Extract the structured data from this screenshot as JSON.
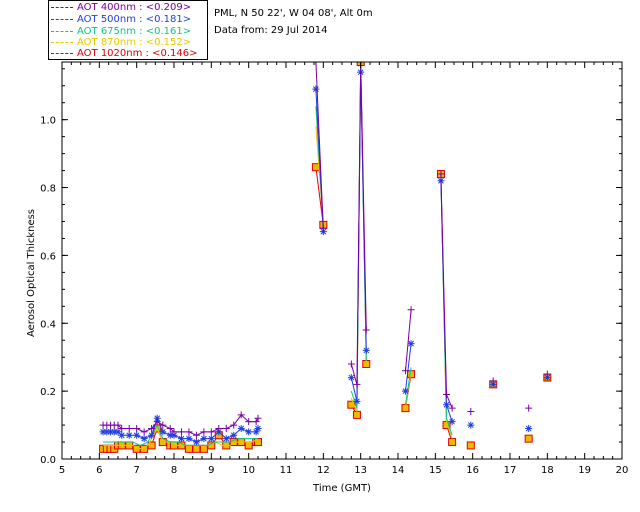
{
  "info": {
    "site": "PML, N 50 22', W 04 08', Alt 0m",
    "date": "Data from: 29 Jul 2014"
  },
  "chart_data": {
    "type": "line",
    "xlabel": "Time (GMT)",
    "ylabel": "Aerosol Optical Thickness",
    "xlim": [
      5,
      20
    ],
    "ylim": [
      0,
      1.17
    ],
    "xticks": [
      "5",
      "6",
      "7",
      "8",
      "9",
      "10",
      "11",
      "12",
      "13",
      "14",
      "15",
      "16",
      "17",
      "18",
      "19",
      "20"
    ],
    "yticks": [
      "0.0",
      "0.2",
      "0.4",
      "0.6",
      "0.8",
      "1.0"
    ],
    "legend_position": "top-left, outside plot",
    "grid": false,
    "series": [
      {
        "name": "AOT  400nm : <0.209>",
        "color": "#7a00a8",
        "marker": "plus",
        "segments": [
          [
            [
              6.1,
              0.1
            ],
            [
              6.2,
              0.1
            ],
            [
              6.3,
              0.1
            ],
            [
              6.4,
              0.1
            ],
            [
              6.5,
              0.1
            ],
            [
              6.6,
              0.09
            ],
            [
              6.8,
              0.09
            ],
            [
              7.0,
              0.09
            ],
            [
              7.2,
              0.08
            ],
            [
              7.4,
              0.09
            ],
            [
              7.55,
              0.11
            ],
            [
              7.7,
              0.1
            ],
            [
              7.9,
              0.09
            ],
            [
              8.0,
              0.08
            ],
            [
              8.2,
              0.08
            ],
            [
              8.4,
              0.08
            ],
            [
              8.6,
              0.07
            ],
            [
              8.8,
              0.08
            ],
            [
              9.0,
              0.08
            ],
            [
              9.2,
              0.09
            ],
            [
              9.4,
              0.09
            ],
            [
              9.6,
              0.1
            ],
            [
              9.8,
              0.13
            ],
            [
              10.0,
              0.11
            ],
            [
              10.2,
              0.11
            ],
            [
              10.25,
              0.12
            ]
          ],
          [
            [
              11.8,
              1.17
            ],
            [
              12.0,
              0.68
            ]
          ],
          [
            [
              12.75,
              0.28
            ],
            [
              12.9,
              0.22
            ],
            [
              13.0,
              1.17
            ],
            [
              13.15,
              0.38
            ]
          ],
          [
            [
              14.2,
              0.26
            ],
            [
              14.35,
              0.44
            ]
          ],
          [
            [
              15.15,
              0.84
            ],
            [
              15.3,
              0.19
            ],
            [
              15.45,
              0.15
            ]
          ],
          [
            [
              15.95,
              0.14
            ]
          ],
          [
            [
              16.55,
              0.23
            ]
          ],
          [
            [
              17.5,
              0.15
            ]
          ],
          [
            [
              18.0,
              0.25
            ]
          ]
        ]
      },
      {
        "name": "AOT  500nm : <0.181>",
        "color": "#1f3fe0",
        "marker": "star",
        "segments": [
          [
            [
              6.1,
              0.08
            ],
            [
              6.2,
              0.08
            ],
            [
              6.3,
              0.08
            ],
            [
              6.4,
              0.08
            ],
            [
              6.5,
              0.08
            ],
            [
              6.6,
              0.07
            ],
            [
              6.8,
              0.07
            ],
            [
              7.0,
              0.07
            ],
            [
              7.2,
              0.06
            ],
            [
              7.4,
              0.07
            ],
            [
              7.55,
              0.12
            ],
            [
              7.7,
              0.08
            ],
            [
              7.9,
              0.07
            ],
            [
              8.0,
              0.07
            ],
            [
              8.2,
              0.06
            ],
            [
              8.4,
              0.06
            ],
            [
              8.6,
              0.05
            ],
            [
              8.8,
              0.06
            ],
            [
              9.0,
              0.06
            ],
            [
              9.2,
              0.08
            ],
            [
              9.4,
              0.06
            ],
            [
              9.6,
              0.07
            ],
            [
              9.8,
              0.09
            ],
            [
              10.0,
              0.08
            ],
            [
              10.2,
              0.08
            ],
            [
              10.25,
              0.09
            ]
          ],
          [
            [
              11.8,
              1.09
            ],
            [
              12.0,
              0.67
            ]
          ],
          [
            [
              12.75,
              0.24
            ],
            [
              12.9,
              0.17
            ],
            [
              13.0,
              1.14
            ],
            [
              13.15,
              0.32
            ]
          ],
          [
            [
              14.2,
              0.2
            ],
            [
              14.35,
              0.34
            ]
          ],
          [
            [
              15.15,
              0.82
            ],
            [
              15.3,
              0.16
            ],
            [
              15.45,
              0.11
            ]
          ],
          [
            [
              15.95,
              0.1
            ]
          ],
          [
            [
              16.55,
              0.22
            ]
          ],
          [
            [
              17.5,
              0.09
            ]
          ],
          [
            [
              18.0,
              0.24
            ]
          ]
        ]
      },
      {
        "name": "AOT  675nm : <0.161>",
        "color": "#00cc88",
        "marker": "none",
        "segments": [
          [
            [
              6.1,
              0.05
            ],
            [
              6.3,
              0.05
            ],
            [
              6.5,
              0.05
            ],
            [
              6.7,
              0.05
            ],
            [
              6.9,
              0.05
            ],
            [
              7.1,
              0.04
            ],
            [
              7.3,
              0.05
            ],
            [
              7.55,
              0.1
            ],
            [
              7.7,
              0.06
            ],
            [
              7.9,
              0.05
            ],
            [
              8.1,
              0.05
            ],
            [
              8.3,
              0.04
            ],
            [
              8.5,
              0.04
            ],
            [
              8.7,
              0.04
            ],
            [
              8.9,
              0.04
            ],
            [
              9.1,
              0.05
            ],
            [
              9.3,
              0.05
            ],
            [
              9.5,
              0.05
            ],
            [
              9.7,
              0.06
            ],
            [
              9.9,
              0.06
            ],
            [
              10.1,
              0.06
            ],
            [
              10.25,
              0.06
            ]
          ],
          [
            [
              11.8,
              1.04
            ],
            [
              12.0,
              0.69
            ]
          ],
          [
            [
              12.75,
              0.2
            ],
            [
              12.9,
              0.15
            ],
            [
              13.0,
              1.16
            ],
            [
              13.15,
              0.29
            ]
          ],
          [
            [
              14.2,
              0.16
            ],
            [
              14.35,
              0.27
            ]
          ],
          [
            [
              15.15,
              0.83
            ],
            [
              15.3,
              0.12
            ],
            [
              15.45,
              0.07
            ]
          ],
          [
            [
              15.95,
              0.06
            ]
          ],
          [
            [
              16.55,
              0.22
            ]
          ],
          [
            [
              17.5,
              0.07
            ]
          ],
          [
            [
              18.0,
              0.24
            ]
          ]
        ]
      },
      {
        "name": "AOT  870nm : <0.152>",
        "color": "#e6c800",
        "marker": "none",
        "segments": [
          [
            [
              6.1,
              0.04
            ],
            [
              6.3,
              0.04
            ],
            [
              6.5,
              0.04
            ],
            [
              6.7,
              0.04
            ],
            [
              6.9,
              0.04
            ],
            [
              7.1,
              0.03
            ],
            [
              7.3,
              0.04
            ],
            [
              7.55,
              0.09
            ],
            [
              7.7,
              0.05
            ],
            [
              7.9,
              0.05
            ],
            [
              8.1,
              0.04
            ],
            [
              8.3,
              0.04
            ],
            [
              8.5,
              0.04
            ],
            [
              8.7,
              0.04
            ],
            [
              8.9,
              0.04
            ],
            [
              9.1,
              0.05
            ],
            [
              9.3,
              0.04
            ],
            [
              9.5,
              0.04
            ],
            [
              9.7,
              0.05
            ],
            [
              9.9,
              0.05
            ],
            [
              10.1,
              0.05
            ],
            [
              10.25,
              0.06
            ]
          ],
          [
            [
              11.8,
              0.98
            ],
            [
              12.0,
              0.69
            ]
          ],
          [
            [
              12.75,
              0.18
            ],
            [
              12.9,
              0.14
            ],
            [
              13.0,
              1.17
            ],
            [
              13.15,
              0.28
            ]
          ],
          [
            [
              14.2,
              0.15
            ],
            [
              14.35,
              0.26
            ]
          ],
          [
            [
              15.15,
              0.84
            ],
            [
              15.3,
              0.11
            ],
            [
              15.45,
              0.06
            ]
          ],
          [
            [
              15.95,
              0.05
            ]
          ],
          [
            [
              16.55,
              0.22
            ]
          ],
          [
            [
              17.5,
              0.06
            ]
          ],
          [
            [
              18.0,
              0.24
            ]
          ]
        ]
      },
      {
        "name": "AOT 1020nm : <0.146>",
        "color": "#e00000",
        "marker": "square",
        "segments": [
          [
            [
              6.1,
              0.03
            ],
            [
              6.2,
              0.03
            ],
            [
              6.3,
              0.03
            ],
            [
              6.4,
              0.03
            ],
            [
              6.5,
              0.04
            ],
            [
              6.6,
              0.04
            ],
            [
              6.8,
              0.04
            ],
            [
              7.0,
              0.03
            ],
            [
              7.2,
              0.03
            ],
            [
              7.4,
              0.04
            ],
            [
              7.55,
              0.09
            ],
            [
              7.7,
              0.05
            ],
            [
              7.9,
              0.04
            ],
            [
              8.0,
              0.04
            ],
            [
              8.2,
              0.04
            ],
            [
              8.4,
              0.03
            ],
            [
              8.6,
              0.03
            ],
            [
              8.8,
              0.03
            ],
            [
              9.0,
              0.04
            ],
            [
              9.2,
              0.07
            ],
            [
              9.4,
              0.04
            ],
            [
              9.6,
              0.05
            ],
            [
              9.8,
              0.05
            ],
            [
              10.0,
              0.04
            ],
            [
              10.2,
              0.05
            ],
            [
              10.25,
              0.05
            ]
          ],
          [
            [
              11.8,
              0.86
            ],
            [
              12.0,
              0.69
            ]
          ],
          [
            [
              12.75,
              0.16
            ],
            [
              12.9,
              0.13
            ],
            [
              13.0,
              1.17
            ],
            [
              13.15,
              0.28
            ]
          ],
          [
            [
              14.2,
              0.15
            ],
            [
              14.35,
              0.25
            ]
          ],
          [
            [
              15.15,
              0.84
            ],
            [
              15.3,
              0.1
            ],
            [
              15.45,
              0.05
            ]
          ],
          [
            [
              15.95,
              0.04
            ]
          ],
          [
            [
              16.55,
              0.22
            ]
          ],
          [
            [
              17.5,
              0.06
            ]
          ],
          [
            [
              18.0,
              0.24
            ]
          ]
        ]
      }
    ]
  }
}
